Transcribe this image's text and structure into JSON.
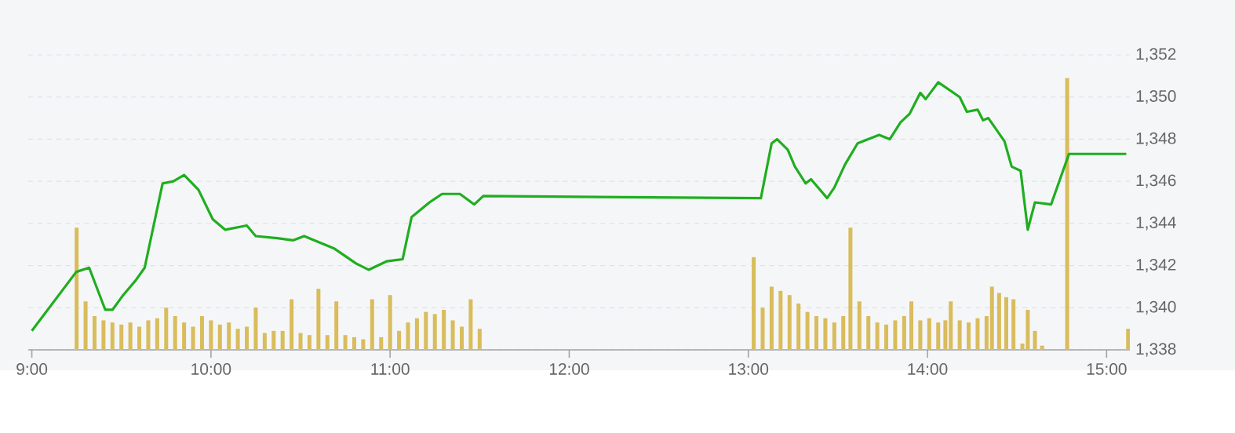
{
  "chart_data": {
    "type": "line",
    "xlim": [
      8.98,
      15.13
    ],
    "ylim": [
      1338,
      1352
    ],
    "xticks": [
      {
        "value": 9,
        "label": "9:00"
      },
      {
        "value": 10,
        "label": "10:00"
      },
      {
        "value": 11,
        "label": "11:00"
      },
      {
        "value": 12,
        "label": "12:00"
      },
      {
        "value": 13,
        "label": "13:00"
      },
      {
        "value": 14,
        "label": "14:00"
      },
      {
        "value": 15,
        "label": "15:00"
      }
    ],
    "yticks": [
      {
        "value": 1338,
        "label": "1,338"
      },
      {
        "value": 1340,
        "label": "1,340"
      },
      {
        "value": 1342,
        "label": "1,342"
      },
      {
        "value": 1344,
        "label": "1,344"
      },
      {
        "value": 1346,
        "label": "1,346"
      },
      {
        "value": 1348,
        "label": "1,348"
      },
      {
        "value": 1350,
        "label": "1,350"
      },
      {
        "value": 1352,
        "label": "1,352"
      }
    ],
    "grid": "y",
    "marker": "none",
    "line_style": "solid",
    "series": [
      {
        "type": "bar",
        "color": "#d9bc5c",
        "x": [
          9.25,
          9.3,
          9.35,
          9.4,
          9.45,
          9.5,
          9.55,
          9.6,
          9.65,
          9.7,
          9.75,
          9.8,
          9.85,
          9.9,
          9.95,
          10.0,
          10.05,
          10.1,
          10.15,
          10.2,
          10.25,
          10.3,
          10.35,
          10.4,
          10.45,
          10.5,
          10.55,
          10.6,
          10.65,
          10.7,
          10.75,
          10.8,
          10.85,
          10.9,
          10.95,
          11.0,
          11.05,
          11.1,
          11.15,
          11.2,
          11.25,
          11.3,
          11.35,
          11.4,
          11.45,
          11.5,
          13.03,
          13.08,
          13.13,
          13.18,
          13.23,
          13.28,
          13.33,
          13.38,
          13.43,
          13.48,
          13.53,
          13.57,
          13.62,
          13.67,
          13.72,
          13.77,
          13.82,
          13.87,
          13.91,
          13.96,
          14.01,
          14.06,
          14.1,
          14.13,
          14.18,
          14.23,
          14.28,
          14.33,
          14.36,
          14.4,
          14.44,
          14.48,
          14.53,
          14.56,
          14.6,
          14.64,
          14.78,
          15.12
        ],
        "values": [
          1343.8,
          1340.3,
          1339.6,
          1339.4,
          1339.3,
          1339.2,
          1339.3,
          1339.1,
          1339.4,
          1339.5,
          1340.0,
          1339.6,
          1339.3,
          1339.1,
          1339.6,
          1339.4,
          1339.2,
          1339.3,
          1339.0,
          1339.1,
          1340.0,
          1338.8,
          1338.9,
          1338.9,
          1340.4,
          1338.8,
          1338.7,
          1340.9,
          1338.7,
          1340.3,
          1338.7,
          1338.6,
          1338.5,
          1340.4,
          1338.6,
          1340.6,
          1338.9,
          1339.3,
          1339.5,
          1339.8,
          1339.7,
          1339.9,
          1339.4,
          1339.1,
          1340.4,
          1339.0,
          1342.4,
          1340.0,
          1341.0,
          1340.8,
          1340.6,
          1340.2,
          1339.8,
          1339.6,
          1339.5,
          1339.3,
          1339.6,
          1343.8,
          1340.3,
          1339.6,
          1339.3,
          1339.2,
          1339.4,
          1339.6,
          1340.3,
          1339.4,
          1339.5,
          1339.3,
          1339.4,
          1340.3,
          1339.4,
          1339.3,
          1339.5,
          1339.6,
          1341.0,
          1340.7,
          1340.5,
          1340.4,
          1338.3,
          1339.9,
          1338.9,
          1338.2,
          1350.9,
          1339.0
        ]
      },
      {
        "color": "#1fae1f",
        "x": [
          9.0,
          9.248,
          9.32,
          9.41,
          9.45,
          9.51,
          9.58,
          9.63,
          9.73,
          9.79,
          9.85,
          9.93,
          10.01,
          10.08,
          10.2,
          10.25,
          10.37,
          10.46,
          10.52,
          10.69,
          10.81,
          10.88,
          10.98,
          11.07,
          11.12,
          11.22,
          11.29,
          11.39,
          11.47,
          11.52,
          13.07,
          13.13,
          13.16,
          13.22,
          13.26,
          13.32,
          13.35,
          13.44,
          13.48,
          13.54,
          13.61,
          13.73,
          13.79,
          13.85,
          13.9,
          13.96,
          13.99,
          14.06,
          14.18,
          14.22,
          14.28,
          14.31,
          14.34,
          14.43,
          14.47,
          14.52,
          14.56,
          14.6,
          14.69,
          14.79,
          15.11
        ],
        "values": [
          1338.9,
          1341.7,
          1341.9,
          1339.9,
          1339.9,
          1340.6,
          1341.3,
          1341.9,
          1345.9,
          1346.0,
          1346.3,
          1345.6,
          1344.2,
          1343.7,
          1343.9,
          1343.4,
          1343.3,
          1343.2,
          1343.4,
          1342.8,
          1342.1,
          1341.8,
          1342.2,
          1342.3,
          1344.3,
          1345.0,
          1345.4,
          1345.4,
          1344.9,
          1345.3,
          1345.2,
          1347.8,
          1348.0,
          1347.5,
          1346.7,
          1345.9,
          1346.1,
          1345.2,
          1345.7,
          1346.8,
          1347.8,
          1348.2,
          1348.0,
          1348.8,
          1349.2,
          1350.2,
          1349.9,
          1350.7,
          1350.0,
          1349.3,
          1349.4,
          1348.9,
          1349.0,
          1347.9,
          1346.7,
          1346.5,
          1343.7,
          1345.0,
          1344.9,
          1347.3,
          1347.3
        ]
      }
    ]
  }
}
